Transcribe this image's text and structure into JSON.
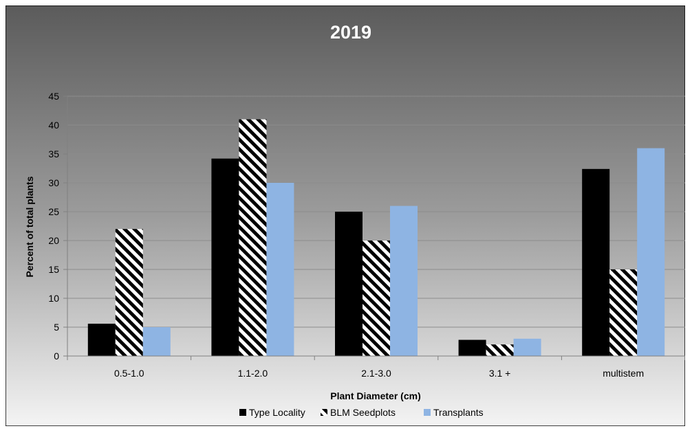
{
  "chart_data": {
    "type": "bar",
    "title": "2019",
    "xlabel": "Plant Diameter (cm)",
    "ylabel": "Percent of total plants",
    "categories": [
      "0.5-1.0",
      "1.1-2.0",
      "2.1-3.0",
      "3.1 +",
      "multistem"
    ],
    "ylim": [
      0,
      45
    ],
    "yticks": [
      0,
      5,
      10,
      15,
      20,
      25,
      30,
      35,
      40,
      45
    ],
    "grid": true,
    "legend_position": "bottom",
    "series": [
      {
        "name": "Type Locality",
        "values": [
          5.6,
          34.2,
          25,
          2.8,
          32.4
        ],
        "color": "#000000",
        "pattern": "solid"
      },
      {
        "name": "BLM Seedplots",
        "values": [
          22,
          41,
          20,
          2,
          15
        ],
        "color": "#000000",
        "pattern": "diagonal-stripes"
      },
      {
        "name": "Transplants",
        "values": [
          5,
          30,
          26,
          3,
          36
        ],
        "color": "#8eb4e3",
        "pattern": "solid"
      }
    ]
  }
}
